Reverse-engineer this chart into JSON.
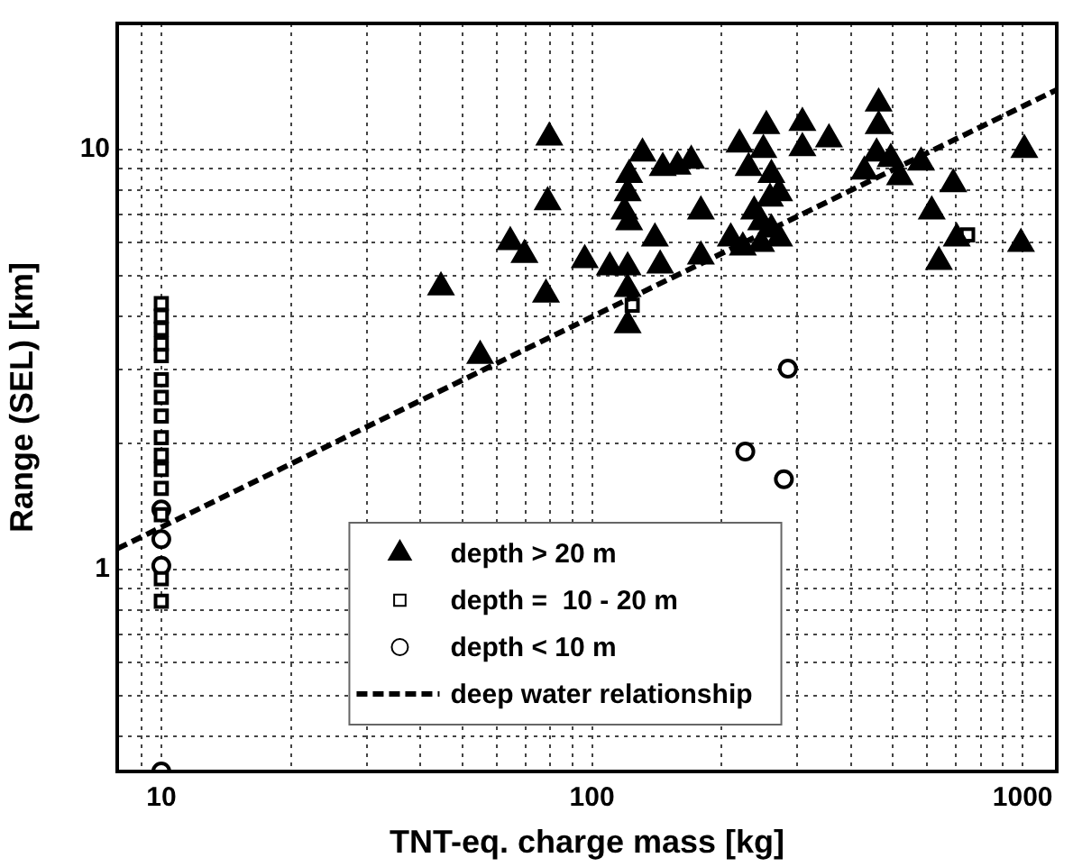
{
  "chart_data": {
    "type": "scatter",
    "xlabel": "TNT-eq. charge mass [kg]",
    "ylabel": "Range (SEL) [km]",
    "log": "xy",
    "grid": true,
    "legend": "bottom",
    "xlim": [
      7.9,
      1200
    ],
    "ylim": [
      0.33,
      20
    ],
    "xticks": [
      {
        "value": 9,
        "label": null
      },
      10,
      {
        "value": 20,
        "label": null
      },
      {
        "value": 30,
        "label": null
      },
      {
        "value": 40,
        "label": null
      },
      {
        "value": 50,
        "label": null
      },
      {
        "value": 60,
        "label": null
      },
      {
        "value": 70,
        "label": null
      },
      {
        "value": 80,
        "label": null
      },
      {
        "value": 90,
        "label": null
      },
      100,
      {
        "value": 200,
        "label": null
      },
      {
        "value": 300,
        "label": null
      },
      {
        "value": 400,
        "label": null
      },
      {
        "value": 500,
        "label": null
      },
      {
        "value": 600,
        "label": null
      },
      {
        "value": 700,
        "label": null
      },
      {
        "value": 800,
        "label": null
      },
      {
        "value": 900,
        "label": null
      },
      1000
    ],
    "yticks": [
      {
        "value": 0.4,
        "label": null
      },
      {
        "value": 0.5,
        "label": null
      },
      {
        "value": 0.6,
        "label": null
      },
      {
        "value": 0.7,
        "label": null
      },
      {
        "value": 0.8,
        "label": null
      },
      {
        "value": 0.9,
        "label": null
      },
      1,
      {
        "value": 2,
        "label": null
      },
      {
        "value": 3,
        "label": null
      },
      {
        "value": 4,
        "label": null
      },
      {
        "value": 5,
        "label": null
      },
      {
        "value": 6,
        "label": null
      },
      {
        "value": 7,
        "label": null
      },
      {
        "value": 8,
        "label": null
      },
      {
        "value": 9,
        "label": null
      },
      10
    ],
    "series": [
      {
        "name": "depth > 20 m",
        "type": "scatter",
        "marker": "triangle",
        "color": "#000000",
        "x": [
          44.6,
          55,
          64.6,
          69.7,
          79.6,
          78.9,
          78.2,
          96.2,
          110,
          121,
          121,
          121,
          131,
          122,
          121,
          119,
          122,
          140,
          146,
          158,
          170,
          179,
          144,
          179,
          210,
          224,
          247,
          272,
          220,
          254,
          250,
          261,
          259,
          238,
          231,
          272,
          247,
          261,
          308,
          308,
          355,
          463,
          463,
          458,
          429,
          494,
          519,
          581,
          690,
          615,
          639,
          703,
          1009,
          991
        ],
        "values": [
          4.7,
          3.23,
          6.03,
          5.62,
          10.7,
          7.5,
          4.52,
          5.46,
          5.25,
          5.25,
          4.66,
          3.82,
          9.8,
          8.71,
          7.88,
          7.13,
          6.72,
          6.15,
          9.05,
          9.12,
          9.42,
          7.13,
          5.3,
          5.57,
          6.15,
          5.85,
          5.97,
          6.15,
          10.3,
          11.4,
          10,
          8.71,
          7.65,
          7.13,
          9.05,
          7.88,
          6.72,
          6.46,
          11.6,
          10.1,
          10.6,
          12.9,
          11.4,
          9.8,
          8.88,
          9.51,
          8.61,
          9.33,
          8.28,
          7.13,
          5.41,
          6.15,
          10,
          5.97
        ]
      },
      {
        "name": "depth =  10 - 20 m",
        "type": "scatter",
        "marker": "square",
        "color": "#000000",
        "x": [
          10,
          10,
          10,
          10,
          10,
          10,
          10,
          10,
          10,
          10,
          10,
          10,
          10,
          10,
          10,
          124,
          745
        ],
        "values": [
          4.3,
          4.01,
          3.74,
          3.45,
          3.23,
          2.83,
          2.57,
          2.32,
          2.06,
          1.87,
          1.73,
          1.56,
          1.35,
          0.95,
          0.84,
          4.26,
          6.27
        ]
      },
      {
        "name": "depth < 10 m",
        "type": "scatter",
        "marker": "circle",
        "color": "#000000",
        "x": [
          10,
          10,
          10,
          10,
          285,
          227,
          279
        ],
        "values": [
          1.39,
          1.18,
          1.02,
          0.33,
          3.01,
          1.91,
          1.64
        ]
      },
      {
        "name": "deep water relationship",
        "type": "line",
        "marker": "none",
        "line_style": "dashed",
        "color": "#000000",
        "x": [
          7.9,
          1200
        ],
        "values": [
          1.12,
          13.9
        ]
      }
    ]
  }
}
